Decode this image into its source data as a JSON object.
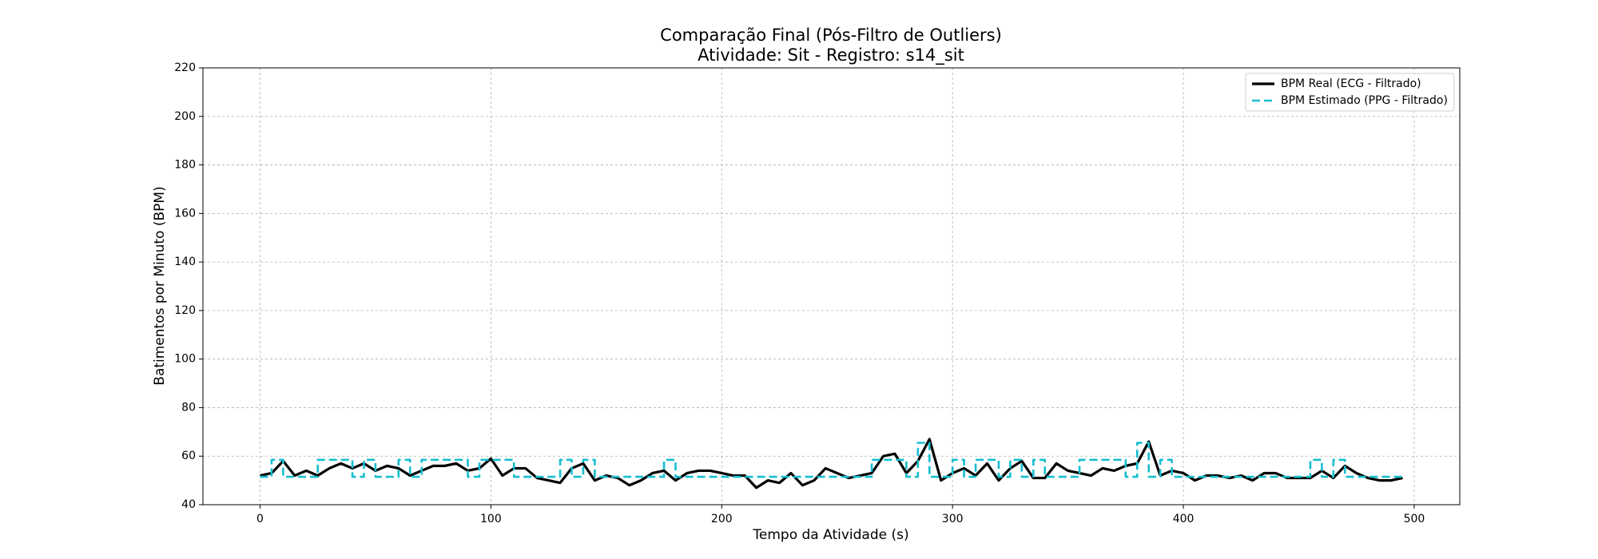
{
  "chart_data": {
    "type": "line",
    "title": "Comparação Final (Pós-Filtro de Outliers)",
    "subtitle": "Atividade: Sit - Registro: s14_sit",
    "x_label": "Tempo da Atividade (s)",
    "y_label": "Batimentos por Minuto (BPM)",
    "x": [
      0,
      5,
      10,
      15,
      20,
      25,
      30,
      35,
      40,
      45,
      50,
      55,
      60,
      65,
      70,
      75,
      80,
      85,
      90,
      95,
      100,
      105,
      110,
      115,
      120,
      125,
      130,
      135,
      140,
      145,
      150,
      155,
      160,
      165,
      170,
      175,
      180,
      185,
      190,
      195,
      200,
      205,
      210,
      215,
      220,
      225,
      230,
      235,
      240,
      245,
      250,
      255,
      260,
      265,
      270,
      275,
      280,
      285,
      290,
      295,
      300,
      305,
      310,
      315,
      320,
      325,
      330,
      335,
      340,
      345,
      350,
      355,
      360,
      365,
      370,
      375,
      380,
      385,
      390,
      395,
      400,
      405,
      410,
      415,
      420,
      425,
      430,
      435,
      440,
      445,
      450,
      455,
      460,
      465,
      470,
      475,
      480,
      485,
      490,
      495
    ],
    "series": [
      {
        "name": "BPM Real (ECG - Filtrado)",
        "color": "#000000",
        "dash": false,
        "steps": false,
        "values": [
          52,
          53,
          58,
          52,
          54,
          52,
          55,
          57,
          55,
          57,
          54,
          56,
          55,
          52,
          54,
          56,
          56,
          57,
          54,
          55,
          59,
          52,
          55,
          55,
          51,
          50,
          49,
          55,
          57,
          50,
          52,
          51,
          48,
          50,
          53,
          54,
          50,
          53,
          54,
          54,
          53,
          52,
          52,
          47,
          50,
          49,
          53,
          48,
          50,
          55,
          53,
          51,
          52,
          53,
          60,
          61,
          53,
          58,
          67,
          50,
          53,
          55,
          52,
          57,
          50,
          55,
          58,
          51,
          51,
          57,
          54,
          53,
          52,
          55,
          54,
          56,
          57,
          66,
          52,
          54,
          53,
          50,
          52,
          52,
          51,
          52,
          50,
          53,
          53,
          51,
          51,
          51,
          54,
          51,
          56,
          53,
          51,
          50,
          50,
          51
        ]
      },
      {
        "name": "BPM Estimado (PPG - Filtrado)",
        "color": "#17becf",
        "dash": true,
        "steps": true,
        "values": [
          51.5,
          58.5,
          51.5,
          51.5,
          51.5,
          58.5,
          58.5,
          58.5,
          51.5,
          58.5,
          51.5,
          51.5,
          58.5,
          51.5,
          58.5,
          58.5,
          58.5,
          58.5,
          51.5,
          58.5,
          58.5,
          58.5,
          51.5,
          51.5,
          51.5,
          51.5,
          58.5,
          51.5,
          58.5,
          51.5,
          51.5,
          51.5,
          51.5,
          51.5,
          51.5,
          58.5,
          51.5,
          51.5,
          51.5,
          51.5,
          51.5,
          51.5,
          51.5,
          51.5,
          51.5,
          51.5,
          51.5,
          51.5,
          51.5,
          51.5,
          51.5,
          51.5,
          51.5,
          58.5,
          58.5,
          58.5,
          51.5,
          65.5,
          51.5,
          51.5,
          58.5,
          51.5,
          58.5,
          58.5,
          51.5,
          58.5,
          51.5,
          58.5,
          51.5,
          51.5,
          51.5,
          58.5,
          58.5,
          58.5,
          58.5,
          51.5,
          65.5,
          51.5,
          58.5,
          51.5,
          51.5,
          51.5,
          51.5,
          51.5,
          51.5,
          51.5,
          51.5,
          51.5,
          51.5,
          51.5,
          51.5,
          58.5,
          51.5,
          58.5,
          51.5,
          51.5,
          51.5,
          51.5,
          51.5,
          51.5
        ]
      }
    ],
    "xlim": [
      -24.75,
      519.75
    ],
    "xticks": [
      0,
      100,
      200,
      300,
      400,
      500
    ],
    "ylim": [
      40,
      220
    ],
    "yticks": [
      40,
      60,
      80,
      100,
      120,
      140,
      160,
      180,
      200,
      220
    ],
    "grid": true,
    "legend": "upper right"
  }
}
